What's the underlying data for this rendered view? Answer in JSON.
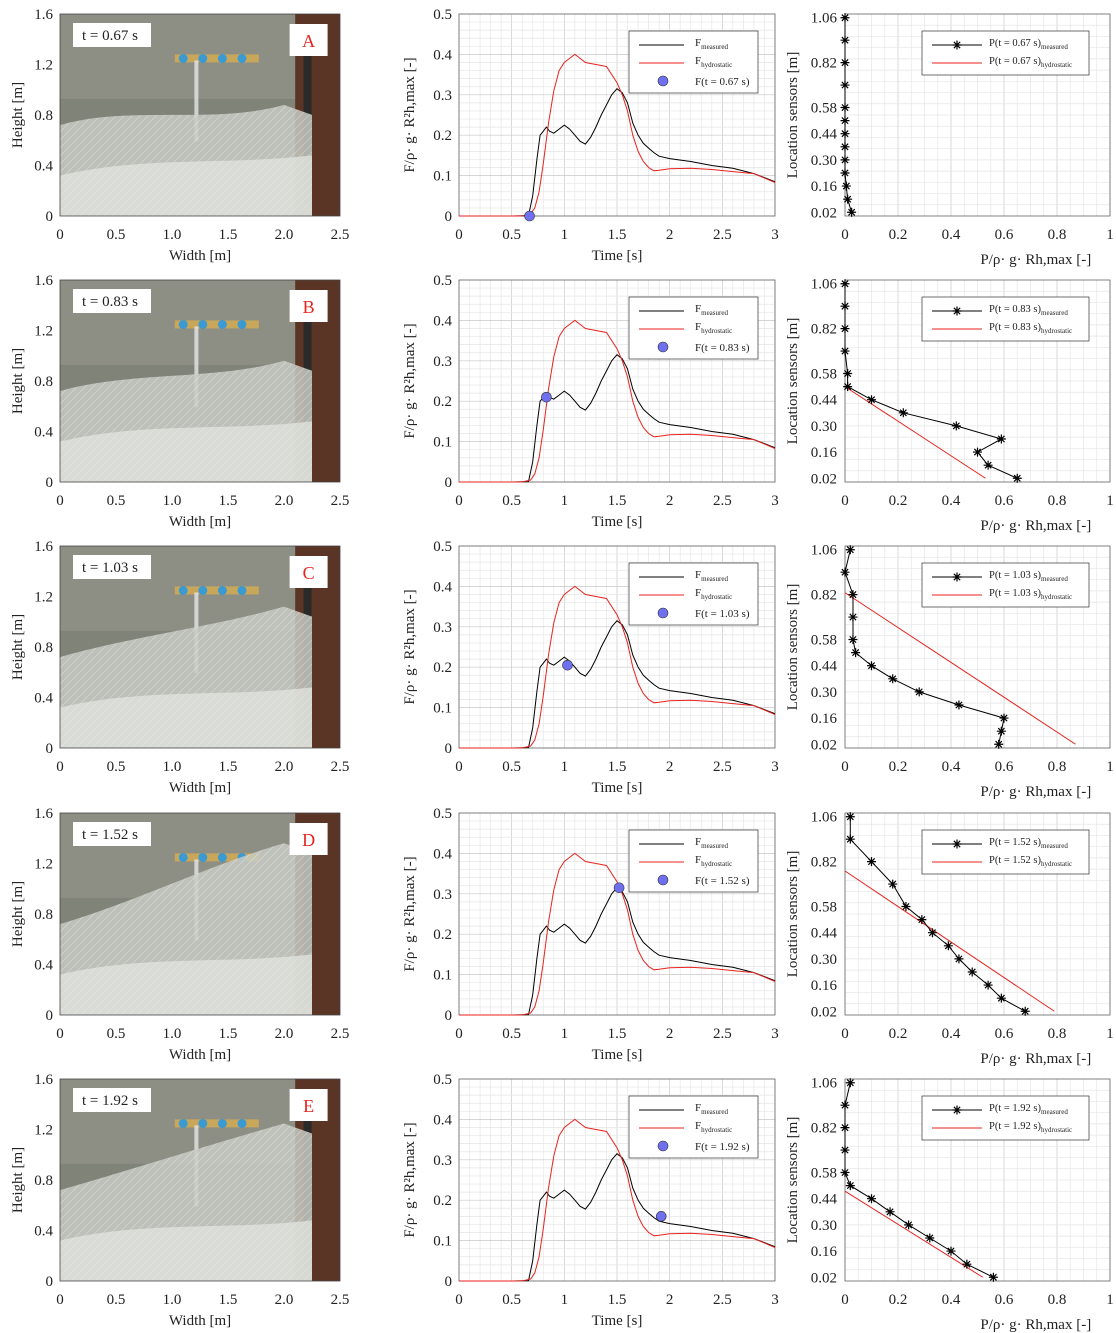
{
  "figure": {
    "photo_axes": {
      "xlabel": "Width [m]",
      "ylabel": "Height [m]",
      "xticks": [
        "0",
        "0.5",
        "1.0",
        "1.5",
        "2.0",
        "2.5"
      ],
      "yticks": [
        "0",
        "0.4",
        "0.8",
        "1.2",
        "1.6"
      ]
    },
    "force_axes": {
      "xlabel": "Time [s]",
      "ylabel": "F/ρ· g· R²h,max [-]",
      "xticks": [
        "0",
        "0.5",
        "1",
        "1.5",
        "2",
        "2.5",
        "3"
      ],
      "yticks": [
        "0",
        "0.1",
        "0.2",
        "0.3",
        "0.4",
        "0.5"
      ],
      "legend": {
        "measured": "F",
        "measured_sub": "measured",
        "hydro": "F",
        "hydro_sub": "hydrostatic"
      }
    },
    "pressure_axes": {
      "xlabel": "P/ρ· g· Rh,max [-]",
      "ylabel": "Location sensors [m]",
      "xticks": [
        "0",
        "0.2",
        "0.4",
        "0.6",
        "0.8",
        "1"
      ],
      "yticks": [
        "0.02",
        "0.16",
        "0.30",
        "0.44",
        "0.58",
        "0.82",
        "1.06"
      ],
      "legend_sub_measured": "measured",
      "legend_sub_hydro": "hydrostatic"
    },
    "colors": {
      "measured": "#000000",
      "hydrostatic": "#e8231e",
      "marker": "#6f70ef",
      "panel_letter": "#e8231e"
    }
  },
  "chart_data": [
    {
      "type": "line",
      "id": "force_history",
      "xlabel": "Time [s]",
      "ylabel": "F/ρ· g· R²h,max [-]",
      "xlim": [
        0,
        3
      ],
      "ylim": [
        0,
        0.5
      ],
      "grid": true,
      "legend_position": "top-right",
      "series": [
        {
          "name": "F measured",
          "x": [
            0,
            0.5,
            0.66,
            0.7,
            0.74,
            0.77,
            0.8,
            0.83,
            0.86,
            0.9,
            0.95,
            1.0,
            1.05,
            1.1,
            1.15,
            1.2,
            1.25,
            1.3,
            1.35,
            1.4,
            1.45,
            1.5,
            1.55,
            1.6,
            1.65,
            1.7,
            1.75,
            1.8,
            1.85,
            1.9,
            2.0,
            2.2,
            2.4,
            2.6,
            2.8,
            3.0
          ],
          "y": [
            0,
            0,
            0.001,
            0.05,
            0.14,
            0.2,
            0.21,
            0.22,
            0.21,
            0.205,
            0.215,
            0.225,
            0.215,
            0.2,
            0.185,
            0.178,
            0.195,
            0.22,
            0.25,
            0.275,
            0.3,
            0.315,
            0.305,
            0.28,
            0.23,
            0.2,
            0.18,
            0.168,
            0.157,
            0.148,
            0.142,
            0.135,
            0.125,
            0.118,
            0.105,
            0.085
          ]
        },
        {
          "name": "F hydrostatic",
          "x": [
            0,
            0.6,
            0.68,
            0.72,
            0.76,
            0.8,
            0.85,
            0.9,
            0.95,
            1.0,
            1.05,
            1.1,
            1.15,
            1.2,
            1.3,
            1.4,
            1.5,
            1.55,
            1.6,
            1.65,
            1.7,
            1.75,
            1.8,
            1.85,
            1.9,
            2.0,
            2.2,
            2.4,
            2.6,
            2.8,
            3.0
          ],
          "y": [
            0,
            0,
            0.005,
            0.02,
            0.06,
            0.13,
            0.23,
            0.31,
            0.36,
            0.38,
            0.39,
            0.4,
            0.39,
            0.38,
            0.375,
            0.37,
            0.33,
            0.3,
            0.26,
            0.2,
            0.16,
            0.135,
            0.12,
            0.112,
            0.113,
            0.117,
            0.118,
            0.115,
            0.11,
            0.105,
            0.083
          ]
        }
      ]
    },
    {
      "type": "line",
      "id": "pressure_profiles",
      "xlabel": "P/ρ· g· Rh,max [-]",
      "ylabel": "Location sensors [m]",
      "xlim": [
        0,
        1
      ],
      "ylim": [
        0,
        1.08
      ],
      "grid": true,
      "legend_position": "top-right",
      "sensor_heights": [
        1.06,
        0.94,
        0.82,
        0.7,
        0.58,
        0.51,
        0.44,
        0.37,
        0.3,
        0.23,
        0.16,
        0.09,
        0.02
      ]
    }
  ],
  "panels": [
    {
      "letter": "A",
      "time_label": "t = 0.67 s",
      "marker": {
        "t": 0.67,
        "f": 0.0,
        "label": "F(t = 0.67 s)"
      },
      "measured_label": "P(t = 0.67 s)",
      "hydro_label": "P(t = 0.67 s)",
      "measured_p": [
        0.0,
        0.0,
        0.0,
        0.0,
        0.0,
        0.0,
        0.0,
        0.0,
        0.0,
        0.0,
        0.005,
        0.01,
        0.025
      ],
      "hydro_line": null
    },
    {
      "letter": "B",
      "time_label": "t = 0.83 s",
      "marker": {
        "t": 0.83,
        "f": 0.21,
        "label": "F(t = 0.83 s)"
      },
      "measured_label": "P(t = 0.83 s)",
      "hydro_label": "P(t = 0.83 s)",
      "measured_p": [
        0.0,
        0.0,
        0.0,
        0.0,
        0.01,
        0.01,
        0.1,
        0.22,
        0.42,
        0.59,
        0.5,
        0.54,
        0.65
      ],
      "hydro_line": [
        [
          0.0,
          0.51
        ],
        [
          0.53,
          0.02
        ]
      ]
    },
    {
      "letter": "C",
      "time_label": "t = 1.03 s",
      "marker": {
        "t": 1.03,
        "f": 0.205,
        "label": "F(t = 1.03 s)"
      },
      "measured_label": "P(t = 1.03 s)",
      "hydro_label": "P(t = 1.03 s)",
      "measured_p": [
        0.02,
        0.0,
        0.03,
        0.03,
        0.03,
        0.04,
        0.1,
        0.18,
        0.28,
        0.43,
        0.6,
        0.59,
        0.58
      ],
      "hydro_line": [
        [
          0.0,
          0.83
        ],
        [
          0.87,
          0.02
        ]
      ]
    },
    {
      "letter": "D",
      "time_label": "t = 1.52 s",
      "marker": {
        "t": 1.52,
        "f": 0.315,
        "label": "F(t = 1.52 s)"
      },
      "measured_label": "P(t = 1.52 s)",
      "hydro_label": "P(t = 1.52 s)",
      "measured_p": [
        0.02,
        0.02,
        0.1,
        0.18,
        0.23,
        0.29,
        0.33,
        0.39,
        0.43,
        0.48,
        0.54,
        0.59,
        0.68
      ],
      "hydro_line": [
        [
          0.0,
          0.77
        ],
        [
          0.79,
          0.02
        ]
      ]
    },
    {
      "letter": "E",
      "time_label": "t = 1.92 s",
      "marker": {
        "t": 1.92,
        "f": 0.16,
        "label": "F(t = 1.92 s)"
      },
      "measured_label": "P(t = 1.92 s)",
      "hydro_label": "P(t = 1.92 s)",
      "measured_p": [
        0.02,
        0.0,
        0.0,
        0.0,
        0.0,
        0.02,
        0.1,
        0.17,
        0.24,
        0.32,
        0.4,
        0.46,
        0.56
      ],
      "hydro_line": [
        [
          0.0,
          0.48
        ],
        [
          0.52,
          0.02
        ]
      ]
    }
  ]
}
